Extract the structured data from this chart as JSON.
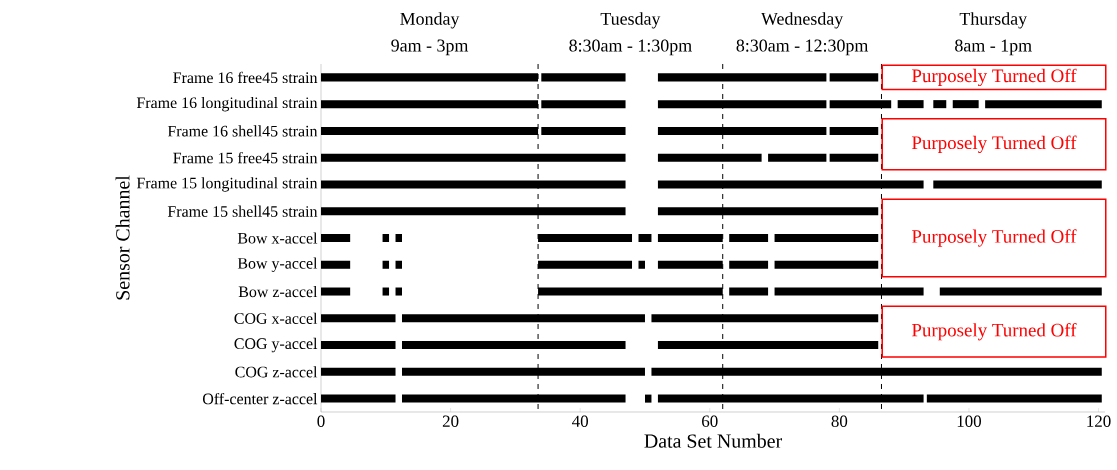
{
  "chart_data": {
    "type": "bar",
    "orientation": "horizontal",
    "xlabel": "Data Set Number",
    "ylabel": "Sensor Channel",
    "categories": [
      "Frame 16 free45 strain",
      "Frame 16 longitudinal strain",
      "Frame 16 shell45 strain",
      "Frame 15 free45 strain",
      "Frame 15 longitudinal strain",
      "Frame 15 shell45 strain",
      "Bow x-accel",
      "Bow y-accel",
      "Bow z-accel",
      "COG x-accel",
      "COG y-accel",
      "COG z-accel",
      "Off-center z-accel"
    ],
    "series": [
      {
        "color": "#000000",
        "base": [
          0,
          0,
          0,
          0,
          0,
          0,
          0,
          0,
          0,
          0,
          0,
          0,
          0
        ],
        "values": [
          33.5,
          33.5,
          33.5,
          47,
          47,
          47,
          4.5,
          4.5,
          4.5,
          11.5,
          11.5,
          11.5,
          11.5
        ]
      },
      {
        "color": "#000000",
        "base": [
          34,
          34,
          34,
          52,
          52,
          52,
          9.5,
          9.5,
          9.5,
          12.5,
          12.5,
          12.5,
          12.5
        ],
        "values": [
          13,
          13,
          13,
          16,
          41,
          34,
          1,
          1,
          1,
          37.5,
          34.5,
          37.5,
          34.5
        ]
      },
      {
        "color": "#000000",
        "base": [
          52,
          52,
          52,
          69,
          94.5,
          null,
          11.5,
          11.5,
          11.5,
          51,
          52,
          51,
          50
        ],
        "values": [
          26,
          26,
          26,
          9,
          26,
          null,
          1,
          1,
          1,
          35,
          34,
          69.5,
          1
        ]
      },
      {
        "color": "#000000",
        "base": [
          78.5,
          78.5,
          78.5,
          78.5,
          null,
          null,
          33.5,
          33.5,
          33.5,
          null,
          null,
          null,
          52
        ],
        "values": [
          7.5,
          9.5,
          7.5,
          7.5,
          null,
          null,
          14.5,
          14.5,
          28.5,
          null,
          null,
          null,
          41
        ]
      },
      {
        "color": "#000000",
        "base": [
          null,
          89,
          null,
          null,
          null,
          null,
          49,
          49,
          63,
          null,
          null,
          null,
          93.5
        ],
        "values": [
          null,
          4,
          null,
          null,
          null,
          null,
          2,
          1,
          6,
          null,
          null,
          null,
          27
        ]
      },
      {
        "color": "#000000",
        "base": [
          null,
          94.5,
          null,
          null,
          null,
          null,
          52,
          52,
          70,
          null,
          null,
          null,
          null
        ],
        "values": [
          null,
          2,
          null,
          null,
          null,
          null,
          10,
          10,
          23,
          null,
          null,
          null,
          null
        ]
      },
      {
        "color": "#000000",
        "base": [
          null,
          97.5,
          null,
          null,
          null,
          null,
          63,
          63,
          95.5,
          null,
          null,
          null,
          null
        ],
        "values": [
          null,
          4,
          null,
          null,
          null,
          null,
          6,
          6,
          25,
          null,
          null,
          null,
          null
        ]
      },
      {
        "color": "#000000",
        "base": [
          null,
          102.5,
          null,
          null,
          null,
          null,
          70,
          70,
          null,
          null,
          null,
          null,
          null
        ],
        "values": [
          null,
          18,
          null,
          null,
          null,
          null,
          16,
          16,
          null,
          null,
          null,
          null,
          null
        ]
      }
    ],
    "xlim": [
      0,
      121
    ],
    "xticks": [
      0,
      20,
      40,
      60,
      80,
      100,
      120
    ],
    "ref_lines": [
      {
        "axis": "x",
        "value": 33.5,
        "line_style": "dashed"
      },
      {
        "axis": "x",
        "value": 62,
        "line_style": "dashed"
      },
      {
        "axis": "x",
        "value": 86.5,
        "line_style": "dashed"
      }
    ],
    "annotations": [
      "Monday",
      "9am - 3pm",
      "Tuesday",
      "8:30am - 1:30pm",
      "Wednesday",
      "8:30am - 12:30pm",
      "Thursday",
      "8am - 1pm",
      "Purposely Turned Off",
      "Purposely Turned Off",
      "Purposely Turned Off",
      "Purposely Turned Off"
    ]
  }
}
